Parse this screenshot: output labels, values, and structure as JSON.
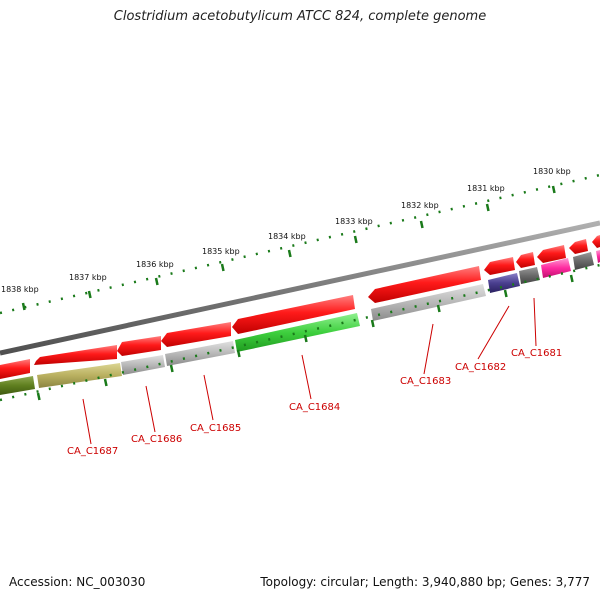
{
  "title": "Clostridium acetobutylicum ATCC 824, complete genome",
  "footer": {
    "accession": "Accession: NC_003030",
    "topology": "Topology: circular; Length: 3,940,880 bp; Genes: 3,777"
  },
  "scale": {
    "kbp_labels": [
      "1838 kbp",
      "1837 kbp",
      "1836 kbp",
      "1835 kbp",
      "1834 kbp",
      "1833 kbp",
      "1832 kbp",
      "1831 kbp",
      "1830 kbp"
    ]
  },
  "gene_labels": [
    "CA_C1687",
    "CA_C1686",
    "CA_C1685",
    "CA_C1684",
    "CA_C1683",
    "CA_C1682",
    "CA_C1681"
  ],
  "colors": {
    "backbone": "#808080",
    "forward_gene": "#ff1010",
    "ticks": "#1a7a1a",
    "label": "#cc0000",
    "olive": "#b9b060",
    "darkolive": "#5f7f1f",
    "gray": "#b9b9b9",
    "green": "#3ecf3e",
    "navy": "#4a3f8f",
    "darkgray": "#6a6a6a",
    "pink": "#ff2aa0"
  }
}
